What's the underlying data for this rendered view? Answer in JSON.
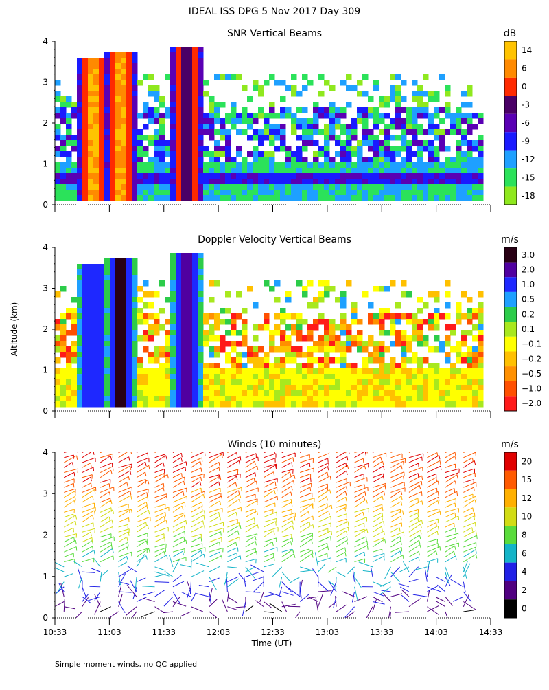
{
  "header": {
    "title": "IDEAL ISS DPG    5 Nov 2017 Day 309"
  },
  "ylabel": "Altitude (km)",
  "xlabel": "Time (UT)",
  "footer_note": "Simple moment winds, no QC applied",
  "x_ticks": [
    "10:33",
    "11:03",
    "11:33",
    "12:03",
    "12:33",
    "13:03",
    "13:33",
    "14:03",
    "14:33"
  ],
  "y_ticks": [
    "0",
    "1",
    "2",
    "3",
    "4"
  ],
  "chart_data": [
    {
      "type": "heatmap",
      "title": "SNR Vertical Beams",
      "xlabel": "Time (UT)",
      "ylabel": "Altitude (km)",
      "xlim": [
        "10:33",
        "14:33"
      ],
      "ylim": [
        0,
        4
      ],
      "colorbar": {
        "unit": "dB",
        "labels": [
          "14",
          "6",
          "0",
          "-3",
          "-6",
          "-9",
          "-12",
          "-15",
          "-18"
        ],
        "colors": [
          "#ffc300",
          "#ff8a00",
          "#ff2a00",
          "#4a0066",
          "#5a00b4",
          "#1a1aff",
          "#1ea0ff",
          "#2be25a",
          "#8fe81e"
        ]
      },
      "features": [
        {
          "time": "10:53",
          "alt_km": [
            0.2,
            3.7
          ],
          "level_db": 14
        },
        {
          "time": "11:08",
          "alt_km": [
            0.2,
            3.8
          ],
          "level_db": 14
        },
        {
          "time": "11:44",
          "alt_km": [
            0.2,
            3.9
          ],
          "level_db": 0
        }
      ]
    },
    {
      "type": "heatmap",
      "title": "Doppler Velocity Vertical Beams",
      "xlabel": "Time (UT)",
      "ylabel": "Altitude (km)",
      "xlim": [
        "10:33",
        "14:33"
      ],
      "ylim": [
        0,
        4
      ],
      "colorbar": {
        "unit": "m/s",
        "labels": [
          "3.0",
          "2.0",
          "1.0",
          "0.5",
          "0.2",
          "0.1",
          "−0.1",
          "−0.2",
          "−0.5",
          "−1.0",
          "−2.0"
        ],
        "colors": [
          "#280014",
          "#5000a0",
          "#1e28ff",
          "#1ea0ff",
          "#2ccc4a",
          "#a8e81e",
          "#ffff00",
          "#ffc000",
          "#ff9000",
          "#ff5000",
          "#ff1a1a"
        ]
      },
      "features": [
        {
          "time": "10:53",
          "alt_km": [
            0.2,
            3.7
          ],
          "velocity_ms": 1.0
        },
        {
          "time": "11:08",
          "alt_km": [
            0.2,
            3.8
          ],
          "velocity_ms": 3.0
        },
        {
          "time": "11:44",
          "alt_km": [
            0.2,
            3.9
          ],
          "velocity_ms": 2.0
        }
      ]
    },
    {
      "type": "scatter",
      "title": "Winds (10 minutes)",
      "xlabel": "Time (UT)",
      "ylabel": "Altitude (km)",
      "xlim": [
        "10:33",
        "14:33"
      ],
      "ylim": [
        0,
        4
      ],
      "colorbar": {
        "unit": "m/s",
        "labels": [
          "20",
          "15",
          "12",
          "10",
          "8",
          "6",
          "4",
          "2",
          "0"
        ],
        "colors": [
          "#e00000",
          "#ff5a00",
          "#ffb000",
          "#d2dc14",
          "#5adc3c",
          "#14b4c8",
          "#2020e6",
          "#500080",
          "#000000"
        ]
      },
      "profile_times": [
        "10:38",
        "10:48",
        "10:58",
        "11:08",
        "11:18",
        "11:28",
        "11:38",
        "11:48",
        "11:58",
        "12:08",
        "12:18",
        "12:28",
        "12:38",
        "12:48",
        "12:58",
        "13:08",
        "13:18",
        "13:28",
        "13:38",
        "13:48",
        "13:58",
        "14:08",
        "14:18"
      ]
    }
  ]
}
